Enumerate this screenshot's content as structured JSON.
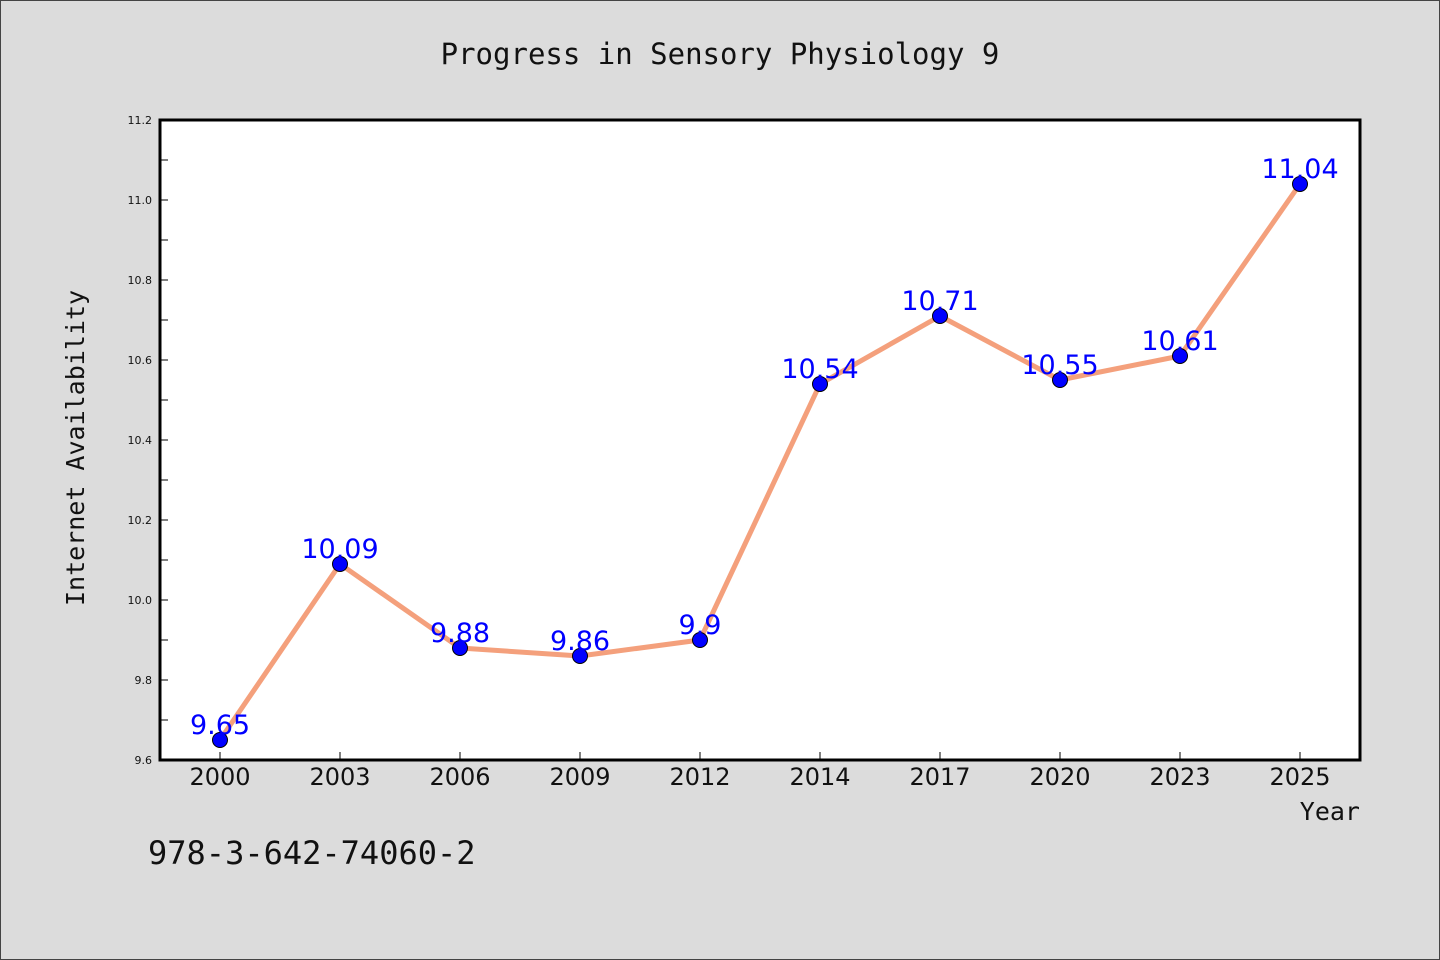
{
  "chart_data": {
    "type": "line",
    "title": "Progress in Sensory Physiology 9",
    "xlabel": "Year",
    "ylabel": "Internet Availability",
    "categories": [
      "2000",
      "2003",
      "2006",
      "2009",
      "2012",
      "2014",
      "2017",
      "2020",
      "2023",
      "2025"
    ],
    "values": [
      9.65,
      10.09,
      9.88,
      9.86,
      9.9,
      10.54,
      10.71,
      10.55,
      10.61,
      11.04
    ],
    "data_labels": [
      "9.65",
      "10.09",
      "9.88",
      "9.86",
      "9.9",
      "10.54",
      "10.71",
      "10.55",
      "10.61",
      "11.04"
    ],
    "ylim": [
      9.6,
      11.2
    ],
    "yticks": [
      "9.6",
      "9.8",
      "10.0",
      "10.2",
      "10.4",
      "10.6",
      "10.8",
      "11.0",
      "11.2"
    ],
    "grid": false,
    "line_color": "#f4a07c",
    "marker_color": "#0000ff",
    "label_color": "#0000ff",
    "background_color": "#dcdcdc",
    "plot_background_color": "#ffffff"
  },
  "footer": {
    "isbn": "978-3-642-74060-2"
  }
}
